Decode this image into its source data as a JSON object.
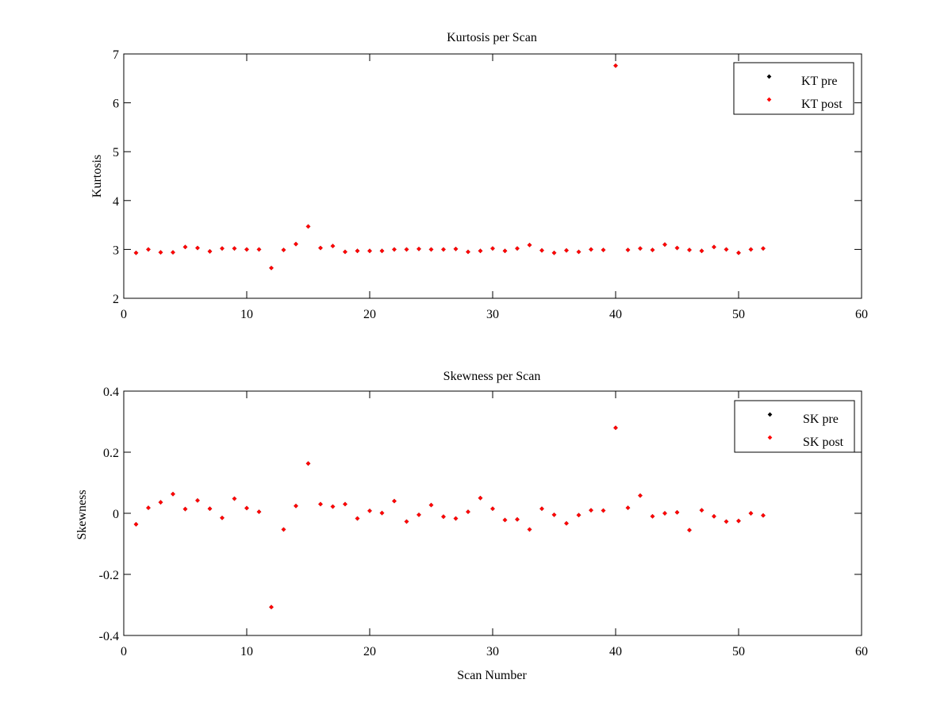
{
  "chart_data": [
    {
      "type": "scatter",
      "title": "Kurtosis per Scan",
      "xlabel": "",
      "ylabel": "Kurtosis",
      "xlim": [
        0,
        60
      ],
      "ylim": [
        2,
        7
      ],
      "xticks": [
        0,
        10,
        20,
        30,
        40,
        50,
        60
      ],
      "yticks": [
        2,
        3,
        4,
        5,
        6,
        7
      ],
      "grid": false,
      "legend_position": "top-right",
      "x": [
        1,
        2,
        3,
        4,
        5,
        6,
        7,
        8,
        9,
        10,
        11,
        12,
        13,
        14,
        15,
        16,
        17,
        18,
        19,
        20,
        21,
        22,
        23,
        24,
        25,
        26,
        27,
        28,
        29,
        30,
        31,
        32,
        33,
        34,
        35,
        36,
        37,
        38,
        39,
        40,
        41,
        42,
        43,
        44,
        45,
        46,
        47,
        48,
        49,
        50,
        51,
        52
      ],
      "series": [
        {
          "name": "KT pre",
          "color": "#000000",
          "values": [
            2.93,
            3.0,
            2.94,
            2.94,
            3.05,
            3.03,
            2.96,
            3.02,
            3.02,
            3.0,
            3.0,
            2.62,
            2.99,
            3.11,
            3.47,
            3.03,
            3.07,
            2.95,
            2.97,
            2.97,
            2.97,
            3.0,
            3.0,
            3.01,
            3.0,
            3.0,
            3.01,
            2.95,
            2.97,
            3.02,
            2.97,
            3.02,
            3.09,
            2.98,
            2.93,
            2.98,
            2.95,
            3.0,
            2.99,
            6.76,
            2.99,
            3.02,
            2.99,
            3.1,
            3.03,
            2.99,
            2.97,
            3.05,
            3.0,
            2.93,
            3.0,
            3.02
          ]
        },
        {
          "name": "KT post",
          "color": "#ff0000",
          "values": [
            2.93,
            3.0,
            2.94,
            2.94,
            3.05,
            3.03,
            2.96,
            3.02,
            3.02,
            3.0,
            3.0,
            2.62,
            2.99,
            3.11,
            3.47,
            3.03,
            3.07,
            2.95,
            2.97,
            2.97,
            2.97,
            3.0,
            3.0,
            3.01,
            3.0,
            3.0,
            3.01,
            2.95,
            2.97,
            3.02,
            2.97,
            3.02,
            3.09,
            2.98,
            2.93,
            2.98,
            2.95,
            3.0,
            2.99,
            6.76,
            2.99,
            3.02,
            2.99,
            3.1,
            3.03,
            2.99,
            2.97,
            3.05,
            3.0,
            2.93,
            3.0,
            3.02
          ]
        }
      ]
    },
    {
      "type": "scatter",
      "title": "Skewness per Scan",
      "xlabel": "Scan Number",
      "ylabel": "Skewness",
      "xlim": [
        0,
        60
      ],
      "ylim": [
        -0.4,
        0.4
      ],
      "xticks": [
        0,
        10,
        20,
        30,
        40,
        50,
        60
      ],
      "yticks": [
        -0.4,
        -0.2,
        0,
        0.2,
        0.4
      ],
      "grid": false,
      "legend_position": "top-right",
      "x": [
        1,
        2,
        3,
        4,
        5,
        6,
        7,
        8,
        9,
        10,
        11,
        12,
        13,
        14,
        15,
        16,
        17,
        18,
        19,
        20,
        21,
        22,
        23,
        24,
        25,
        26,
        27,
        28,
        29,
        30,
        31,
        32,
        33,
        34,
        35,
        36,
        37,
        38,
        39,
        40,
        41,
        42,
        43,
        44,
        45,
        46,
        47,
        48,
        49,
        50,
        51,
        52
      ],
      "series": [
        {
          "name": "SK pre",
          "color": "#000000",
          "values": [
            -0.036,
            0.018,
            0.036,
            0.063,
            0.014,
            0.042,
            0.015,
            -0.015,
            0.048,
            0.017,
            0.005,
            -0.307,
            -0.053,
            0.024,
            0.163,
            0.03,
            0.022,
            0.03,
            -0.017,
            0.008,
            0.001,
            0.04,
            -0.027,
            -0.005,
            0.027,
            -0.011,
            -0.017,
            0.005,
            0.05,
            0.015,
            -0.022,
            -0.02,
            -0.053,
            0.015,
            -0.005,
            -0.033,
            -0.006,
            0.01,
            0.009,
            0.28,
            0.018,
            0.058,
            -0.01,
            0.0,
            0.003,
            -0.055,
            0.01,
            -0.01,
            -0.027,
            -0.025,
            0.0,
            -0.007
          ]
        },
        {
          "name": "SK post",
          "color": "#ff0000",
          "values": [
            -0.036,
            0.018,
            0.036,
            0.063,
            0.014,
            0.042,
            0.015,
            -0.015,
            0.048,
            0.017,
            0.005,
            -0.307,
            -0.053,
            0.024,
            0.163,
            0.03,
            0.022,
            0.03,
            -0.017,
            0.008,
            0.001,
            0.04,
            -0.027,
            -0.005,
            0.027,
            -0.011,
            -0.017,
            0.005,
            0.05,
            0.015,
            -0.022,
            -0.02,
            -0.053,
            0.015,
            -0.005,
            -0.033,
            -0.006,
            0.01,
            0.009,
            0.28,
            0.018,
            0.058,
            -0.01,
            0.0,
            0.003,
            -0.055,
            0.01,
            -0.01,
            -0.027,
            -0.025,
            0.0,
            -0.007
          ]
        }
      ]
    }
  ]
}
